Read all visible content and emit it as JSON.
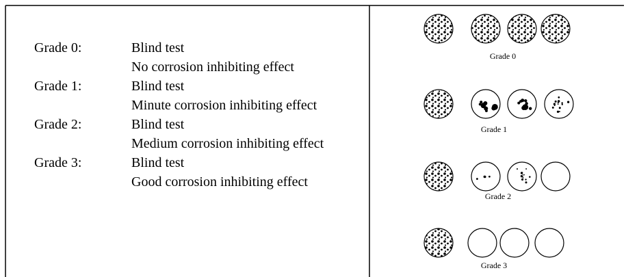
{
  "grades": [
    {
      "grade": "Grade 0:",
      "lines": [
        "Blind test",
        "No corrosion inhibiting effect"
      ]
    },
    {
      "grade": "Grade 1:",
      "lines": [
        "Blind test",
        "Minute corrosion inhibiting effect"
      ]
    },
    {
      "grade": "Grade 2:",
      "lines": [
        "Blind test",
        "Medium corrosion inhibiting effect"
      ]
    },
    {
      "grade": "Grade 3:",
      "lines": [
        "Blind test",
        "Good corrosion inhibiting effect"
      ]
    }
  ],
  "images": [
    {
      "label": "Grade 0"
    },
    {
      "label": "Grade 1"
    },
    {
      "label": "Grade 2"
    },
    {
      "label": "Grade 3"
    }
  ]
}
